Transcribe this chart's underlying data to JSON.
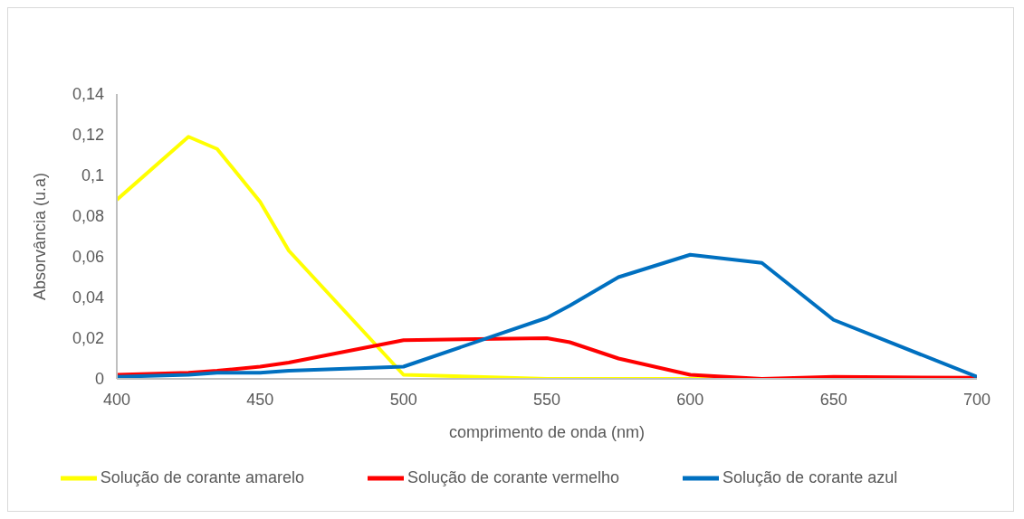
{
  "chart_data": {
    "type": "line",
    "xlabel": "comprimento de onda (nm)",
    "ylabel": "Absorvância (u.a)",
    "series": [
      {
        "name": "Solução de corante amarelo",
        "color": "#ffff00",
        "x": [
          400,
          425,
          435,
          450,
          460,
          500,
          550,
          600,
          625
        ],
        "values": [
          0.088,
          0.119,
          0.113,
          0.087,
          0.063,
          0.002,
          0,
          0,
          0
        ]
      },
      {
        "name": "Solução de corante vermelho",
        "color": "#ff0000",
        "x": [
          400,
          425,
          435,
          450,
          460,
          500,
          550,
          558,
          575,
          600,
          625,
          650,
          700
        ],
        "values": [
          0.002,
          0.003,
          0.004,
          0.006,
          0.008,
          0.019,
          0.02,
          0.018,
          0.01,
          0.002,
          0,
          0.001,
          0.0005
        ]
      },
      {
        "name": "Solução de corante azul",
        "color": "#0070c0",
        "x": [
          400,
          425,
          435,
          450,
          460,
          500,
          550,
          558,
          575,
          600,
          625,
          650,
          700
        ],
        "values": [
          0.001,
          0.002,
          0.003,
          0.003,
          0.004,
          0.006,
          0.03,
          0.036,
          0.05,
          0.061,
          0.057,
          0.029,
          0.001
        ]
      }
    ],
    "xlim": [
      400,
      700
    ],
    "xticks": [
      400,
      450,
      500,
      550,
      600,
      650,
      700
    ],
    "ylim": [
      0,
      0.14
    ],
    "yticks": [
      0,
      {
        "value": 0.02,
        "label": "0,02"
      },
      {
        "value": 0.04,
        "label": "0,04"
      },
      {
        "value": 0.06,
        "label": "0,06"
      },
      {
        "value": 0.08,
        "label": "0,08"
      },
      {
        "value": 0.1,
        "label": "0,1"
      },
      {
        "value": 0.12,
        "label": "0,12"
      },
      {
        "value": 0.14,
        "label": "0,14"
      }
    ],
    "grid": false,
    "legend": "bottom",
    "marker": "none",
    "line_style": "solid"
  }
}
